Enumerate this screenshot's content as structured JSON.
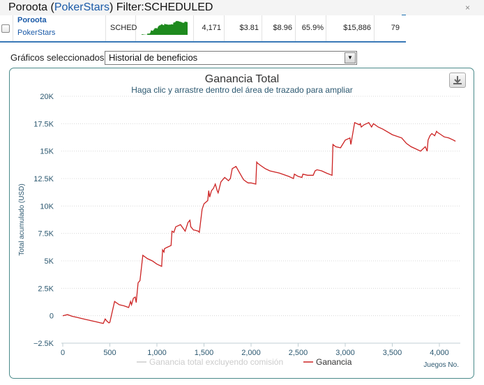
{
  "header": {
    "player": "Poroota",
    "site": "PokerStars",
    "prefix_paren": "(",
    "suffix_paren": ")",
    "filter_text": "Filter:SCHEDULED",
    "close_glyph": "×"
  },
  "summary": {
    "player": "Poroota",
    "site": "PokerStars",
    "game_type": "SCHED",
    "hands": "4,171",
    "value_a": "$3.81",
    "value_b": "$8.96",
    "percent": "65.9%",
    "amount": "$15,886",
    "count": "79"
  },
  "selector": {
    "label": "Gráficos seleccionados:",
    "value": "Historial de beneficios"
  },
  "icons": {
    "dropdown": "chevron-down-icon",
    "download": "download-icon",
    "checkbox": "checkbox-icon"
  },
  "colors": {
    "series_ganancia": "#cc2222",
    "series_excl": "#cccccc",
    "sparkline": "#1e8a1e",
    "axis_text": "#2c5870",
    "panel_border": "#4a8a8a"
  },
  "chart_data": {
    "type": "line",
    "title": "Ganancia Total",
    "subtitle": "Haga clic y arrastre dentro del área de trazado para ampliar",
    "xlabel": "Juegos No.",
    "ylabel": "Total acumulado (USD)",
    "xlim": [
      0,
      4250
    ],
    "ylim": [
      -2500,
      20000
    ],
    "x_ticks": [
      0,
      500,
      1000,
      1500,
      2000,
      2500,
      3000,
      3500,
      4000
    ],
    "x_tick_labels": [
      "0",
      "500",
      "1,000",
      "1,500",
      "2,000",
      "2,500",
      "3,000",
      "3,500",
      "4,000"
    ],
    "y_ticks": [
      -2500,
      0,
      2500,
      5000,
      7500,
      10000,
      12500,
      15000,
      17500,
      20000
    ],
    "y_tick_labels": [
      "−2.5K",
      "0",
      "2.5K",
      "5K",
      "7.5K",
      "10K",
      "12.5K",
      "15K",
      "17.5K",
      "20K"
    ],
    "grid": true,
    "legend_position": "bottom-center",
    "series": [
      {
        "name": "Ganancia total excluyendo comisión",
        "visible": false,
        "x": [],
        "y": []
      },
      {
        "name": "Ganancia",
        "visible": true,
        "x": [
          0,
          50,
          100,
          150,
          200,
          250,
          300,
          350,
          400,
          430,
          450,
          470,
          490,
          500,
          550,
          600,
          650,
          700,
          720,
          730,
          750,
          770,
          780,
          800,
          820,
          850,
          900,
          950,
          1000,
          1050,
          1060,
          1075,
          1080,
          1100,
          1150,
          1160,
          1180,
          1200,
          1250,
          1300,
          1330,
          1350,
          1360,
          1390,
          1400,
          1440,
          1450,
          1480,
          1500,
          1540,
          1550,
          1560,
          1580,
          1600,
          1620,
          1640,
          1650,
          1680,
          1720,
          1760,
          1780,
          1800,
          1840,
          1900,
          1920,
          1950,
          1970,
          2000,
          2050,
          2060,
          2070,
          2100,
          2150,
          2200,
          2300,
          2400,
          2450,
          2460,
          2500,
          2540,
          2550,
          2600,
          2660,
          2680,
          2700,
          2750,
          2800,
          2860,
          2870,
          2900,
          2950,
          3000,
          3050,
          3060,
          3100,
          3150,
          3160,
          3170,
          3200,
          3250,
          3280,
          3300,
          3350,
          3400,
          3500,
          3600,
          3650,
          3700,
          3750,
          3800,
          3850,
          3870,
          3880,
          3900,
          3920,
          3950,
          3970,
          3980,
          4000,
          4050,
          4100,
          4150,
          4171
        ],
        "y": [
          0,
          100,
          -50,
          -150,
          -250,
          -350,
          -450,
          -550,
          -650,
          -700,
          -300,
          -500,
          -650,
          -600,
          1300,
          1000,
          900,
          750,
          1300,
          1000,
          1600,
          1700,
          1200,
          3000,
          3200,
          5500,
          5200,
          5000,
          4700,
          4500,
          6000,
          5800,
          6100,
          6200,
          6400,
          7700,
          7600,
          8100,
          8300,
          7700,
          8500,
          8700,
          8100,
          7800,
          7800,
          7700,
          7600,
          9700,
          10200,
          10500,
          11400,
          10800,
          11400,
          11600,
          12000,
          11400,
          11200,
          12200,
          12600,
          12300,
          12500,
          13400,
          13600,
          12700,
          12400,
          12200,
          12100,
          12100,
          12000,
          14000,
          13900,
          13700,
          13400,
          13200,
          13000,
          12700,
          12500,
          12900,
          12700,
          12600,
          12900,
          12800,
          12800,
          13200,
          13300,
          13200,
          13000,
          12800,
          15600,
          15400,
          15300,
          16000,
          16200,
          15600,
          17600,
          17400,
          17500,
          17200,
          17400,
          17600,
          17200,
          17500,
          17200,
          17000,
          16500,
          16200,
          15700,
          15400,
          15200,
          15000,
          15400,
          15000,
          16000,
          16400,
          16600,
          16400,
          16800,
          16700,
          16600,
          16300,
          16200,
          16000,
          15900
        ]
      }
    ]
  }
}
